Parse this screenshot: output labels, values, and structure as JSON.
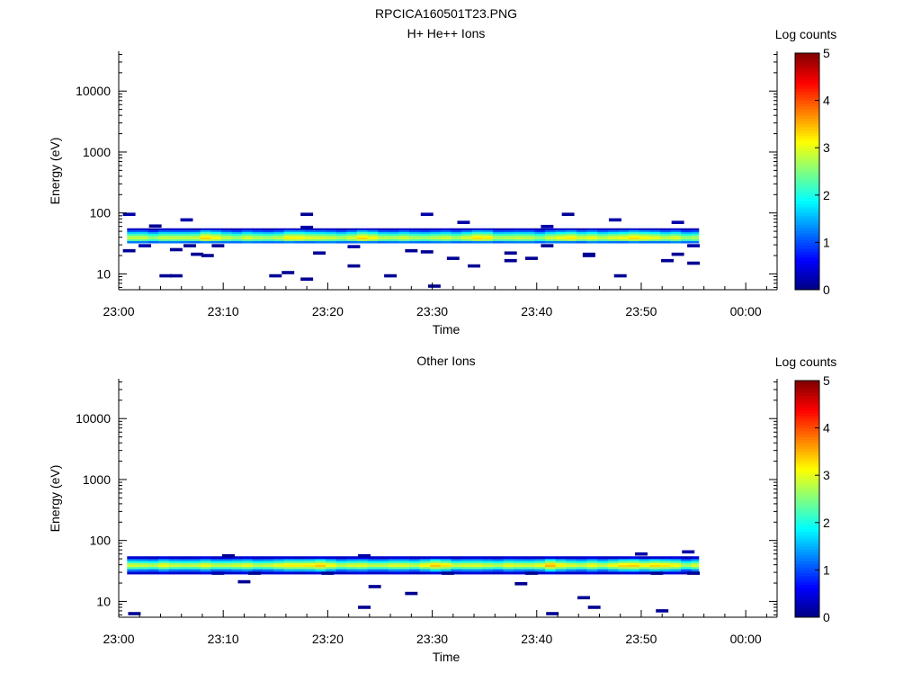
{
  "figure_title": "RPCICA160501T23.PNG",
  "colors": {
    "colormap": [
      "#000080",
      "#0000ff",
      "#0080ff",
      "#00ffff",
      "#80ff80",
      "#ffff00",
      "#ff8000",
      "#ff0000",
      "#800000"
    ],
    "frame": "#000000",
    "background": "#ffffff"
  },
  "chart_data": [
    {
      "type": "heatmap",
      "title": "H+ He++ Ions",
      "xlabel": "Time",
      "ylabel": "Energy (eV)",
      "x_tick_labels": [
        "23:00",
        "23:10",
        "23:20",
        "23:30",
        "23:40",
        "23:50",
        "00:00"
      ],
      "x_ticks_minutes": [
        0,
        10,
        20,
        30,
        40,
        50,
        60
      ],
      "xlim_minutes": [
        0,
        63
      ],
      "y_scale": "log",
      "ylim": [
        5.5,
        45000
      ],
      "y_tick_values": [
        10,
        100,
        1000,
        10000
      ],
      "y_tick_labels": [
        "10",
        "100",
        "1000",
        "10000"
      ],
      "colorbar": {
        "label": "Log counts",
        "range": [
          0,
          5
        ],
        "tick_labels": [
          "0",
          "1",
          "2",
          "3",
          "4",
          "5"
        ]
      },
      "main_band": {
        "t_start_minutes": 0.8,
        "t_end_minutes": 55.5,
        "energy_levels_eV": [
          {
            "lo": 32,
            "hi": 35,
            "log_counts": 1.2
          },
          {
            "lo": 35,
            "hi": 37.5,
            "log_counts": 2.3
          },
          {
            "lo": 37.5,
            "hi": 40,
            "log_counts": 2.8
          },
          {
            "lo": 40,
            "hi": 43,
            "log_counts": 2.6
          },
          {
            "lo": 43,
            "hi": 46,
            "log_counts": 2.1
          },
          {
            "lo": 46,
            "hi": 49,
            "log_counts": 1.6
          },
          {
            "lo": 49,
            "hi": 53,
            "log_counts": 1.0
          },
          {
            "lo": 53,
            "hi": 56,
            "log_counts": 0.3
          }
        ],
        "hot_spots_minutes": [
          8,
          17,
          23,
          34,
          43,
          48,
          50
        ]
      },
      "sparse_counts": [
        {
          "t": 1.0,
          "e": 95,
          "v": 0.2
        },
        {
          "t": 1.0,
          "e": 24,
          "v": 0.1
        },
        {
          "t": 2.5,
          "e": 29,
          "v": 0.2
        },
        {
          "t": 3.5,
          "e": 61,
          "v": 0.1
        },
        {
          "t": 4.5,
          "e": 9.3,
          "v": 0.1
        },
        {
          "t": 5.5,
          "e": 9.3,
          "v": 0.1
        },
        {
          "t": 5.5,
          "e": 25,
          "v": 0.1
        },
        {
          "t": 6.5,
          "e": 77,
          "v": 0.2
        },
        {
          "t": 6.8,
          "e": 29,
          "v": 0.1
        },
        {
          "t": 7.5,
          "e": 21,
          "v": 0.1
        },
        {
          "t": 8.5,
          "e": 20,
          "v": 0.1
        },
        {
          "t": 9.5,
          "e": 29,
          "v": 0.1
        },
        {
          "t": 15.0,
          "e": 9.3,
          "v": 0.1
        },
        {
          "t": 16.2,
          "e": 10.5,
          "v": 0.1
        },
        {
          "t": 18.0,
          "e": 8.2,
          "v": 0.1
        },
        {
          "t": 18.0,
          "e": 58,
          "v": 0.2
        },
        {
          "t": 18.0,
          "e": 95,
          "v": 0.1
        },
        {
          "t": 19.2,
          "e": 22,
          "v": 0.1
        },
        {
          "t": 22.5,
          "e": 13.5,
          "v": 0.1
        },
        {
          "t": 22.5,
          "e": 28,
          "v": 0.2
        },
        {
          "t": 26.0,
          "e": 9.3,
          "v": 0.1
        },
        {
          "t": 28.0,
          "e": 24,
          "v": 0.1
        },
        {
          "t": 29.5,
          "e": 23,
          "v": 0.1
        },
        {
          "t": 29.5,
          "e": 95,
          "v": 0.2
        },
        {
          "t": 30.2,
          "e": 6.3,
          "v": 0.1
        },
        {
          "t": 32.0,
          "e": 18,
          "v": 0.1
        },
        {
          "t": 33.0,
          "e": 70,
          "v": 0.2
        },
        {
          "t": 34.0,
          "e": 13.5,
          "v": 0.1
        },
        {
          "t": 37.5,
          "e": 22,
          "v": 0.1
        },
        {
          "t": 37.5,
          "e": 16.5,
          "v": 0.1
        },
        {
          "t": 39.5,
          "e": 18,
          "v": 0.1
        },
        {
          "t": 41.0,
          "e": 29,
          "v": 0.1
        },
        {
          "t": 41.0,
          "e": 60,
          "v": 0.2
        },
        {
          "t": 43.0,
          "e": 95,
          "v": 0.1
        },
        {
          "t": 45.0,
          "e": 21,
          "v": 0.1
        },
        {
          "t": 45.0,
          "e": 20,
          "v": 0.1
        },
        {
          "t": 47.5,
          "e": 77,
          "v": 0.2
        },
        {
          "t": 48.0,
          "e": 9.3,
          "v": 0.1
        },
        {
          "t": 52.5,
          "e": 16.5,
          "v": 0.1
        },
        {
          "t": 53.5,
          "e": 70,
          "v": 0.2
        },
        {
          "t": 53.5,
          "e": 21,
          "v": 0.1
        },
        {
          "t": 55.0,
          "e": 15,
          "v": 0.1
        },
        {
          "t": 55.0,
          "e": 29,
          "v": 0.2
        }
      ]
    },
    {
      "type": "heatmap",
      "title": "Other Ions",
      "xlabel": "Time",
      "ylabel": "Energy (eV)",
      "x_tick_labels": [
        "23:00",
        "23:10",
        "23:20",
        "23:30",
        "23:40",
        "23:50",
        "00:00"
      ],
      "x_ticks_minutes": [
        0,
        10,
        20,
        30,
        40,
        50,
        60
      ],
      "xlim_minutes": [
        0,
        63
      ],
      "y_scale": "log",
      "ylim": [
        5.5,
        45000
      ],
      "y_tick_values": [
        10,
        100,
        1000,
        10000
      ],
      "y_tick_labels": [
        "10",
        "100",
        "1000",
        "10000"
      ],
      "colorbar": {
        "label": "Log counts",
        "range": [
          0,
          5
        ],
        "tick_labels": [
          "0",
          "1",
          "2",
          "3",
          "4",
          "5"
        ]
      },
      "main_band": {
        "t_start_minutes": 0.8,
        "t_end_minutes": 55.5,
        "energy_levels_eV": [
          {
            "lo": 28,
            "hi": 31,
            "log_counts": 0.4
          },
          {
            "lo": 31,
            "hi": 34,
            "log_counts": 1.2
          },
          {
            "lo": 34,
            "hi": 37,
            "log_counts": 2.2
          },
          {
            "lo": 37,
            "hi": 40,
            "log_counts": 2.9
          },
          {
            "lo": 40,
            "hi": 43,
            "log_counts": 2.7
          },
          {
            "lo": 43,
            "hi": 46.5,
            "log_counts": 2.0
          },
          {
            "lo": 46.5,
            "hi": 50,
            "log_counts": 1.3
          },
          {
            "lo": 50,
            "hi": 55,
            "log_counts": 0.4
          }
        ],
        "hot_spots_minutes": [
          17,
          18.5,
          30,
          41,
          48,
          50,
          51
        ]
      },
      "sparse_counts": [
        {
          "t": 1.5,
          "e": 6.3,
          "v": 0.1
        },
        {
          "t": 9.5,
          "e": 29,
          "v": 0.2
        },
        {
          "t": 10.5,
          "e": 56,
          "v": 0.1
        },
        {
          "t": 12.0,
          "e": 21,
          "v": 0.1
        },
        {
          "t": 13.0,
          "e": 29,
          "v": 0.1
        },
        {
          "t": 20.0,
          "e": 29,
          "v": 0.1
        },
        {
          "t": 23.5,
          "e": 8.0,
          "v": 0.1
        },
        {
          "t": 23.5,
          "e": 56,
          "v": 0.2
        },
        {
          "t": 24.5,
          "e": 17.5,
          "v": 0.1
        },
        {
          "t": 28.0,
          "e": 13.5,
          "v": 0.1
        },
        {
          "t": 31.5,
          "e": 29,
          "v": 0.1
        },
        {
          "t": 38.5,
          "e": 19.5,
          "v": 0.1
        },
        {
          "t": 39.5,
          "e": 29,
          "v": 0.1
        },
        {
          "t": 41.5,
          "e": 6.3,
          "v": 0.1
        },
        {
          "t": 44.5,
          "e": 11.5,
          "v": 0.1
        },
        {
          "t": 45.5,
          "e": 8.0,
          "v": 0.1
        },
        {
          "t": 50.0,
          "e": 60,
          "v": 0.2
        },
        {
          "t": 51.5,
          "e": 29,
          "v": 0.1
        },
        {
          "t": 52.0,
          "e": 7.0,
          "v": 0.1
        },
        {
          "t": 54.5,
          "e": 65,
          "v": 0.2
        },
        {
          "t": 55.0,
          "e": 29,
          "v": 0.1
        }
      ]
    }
  ]
}
